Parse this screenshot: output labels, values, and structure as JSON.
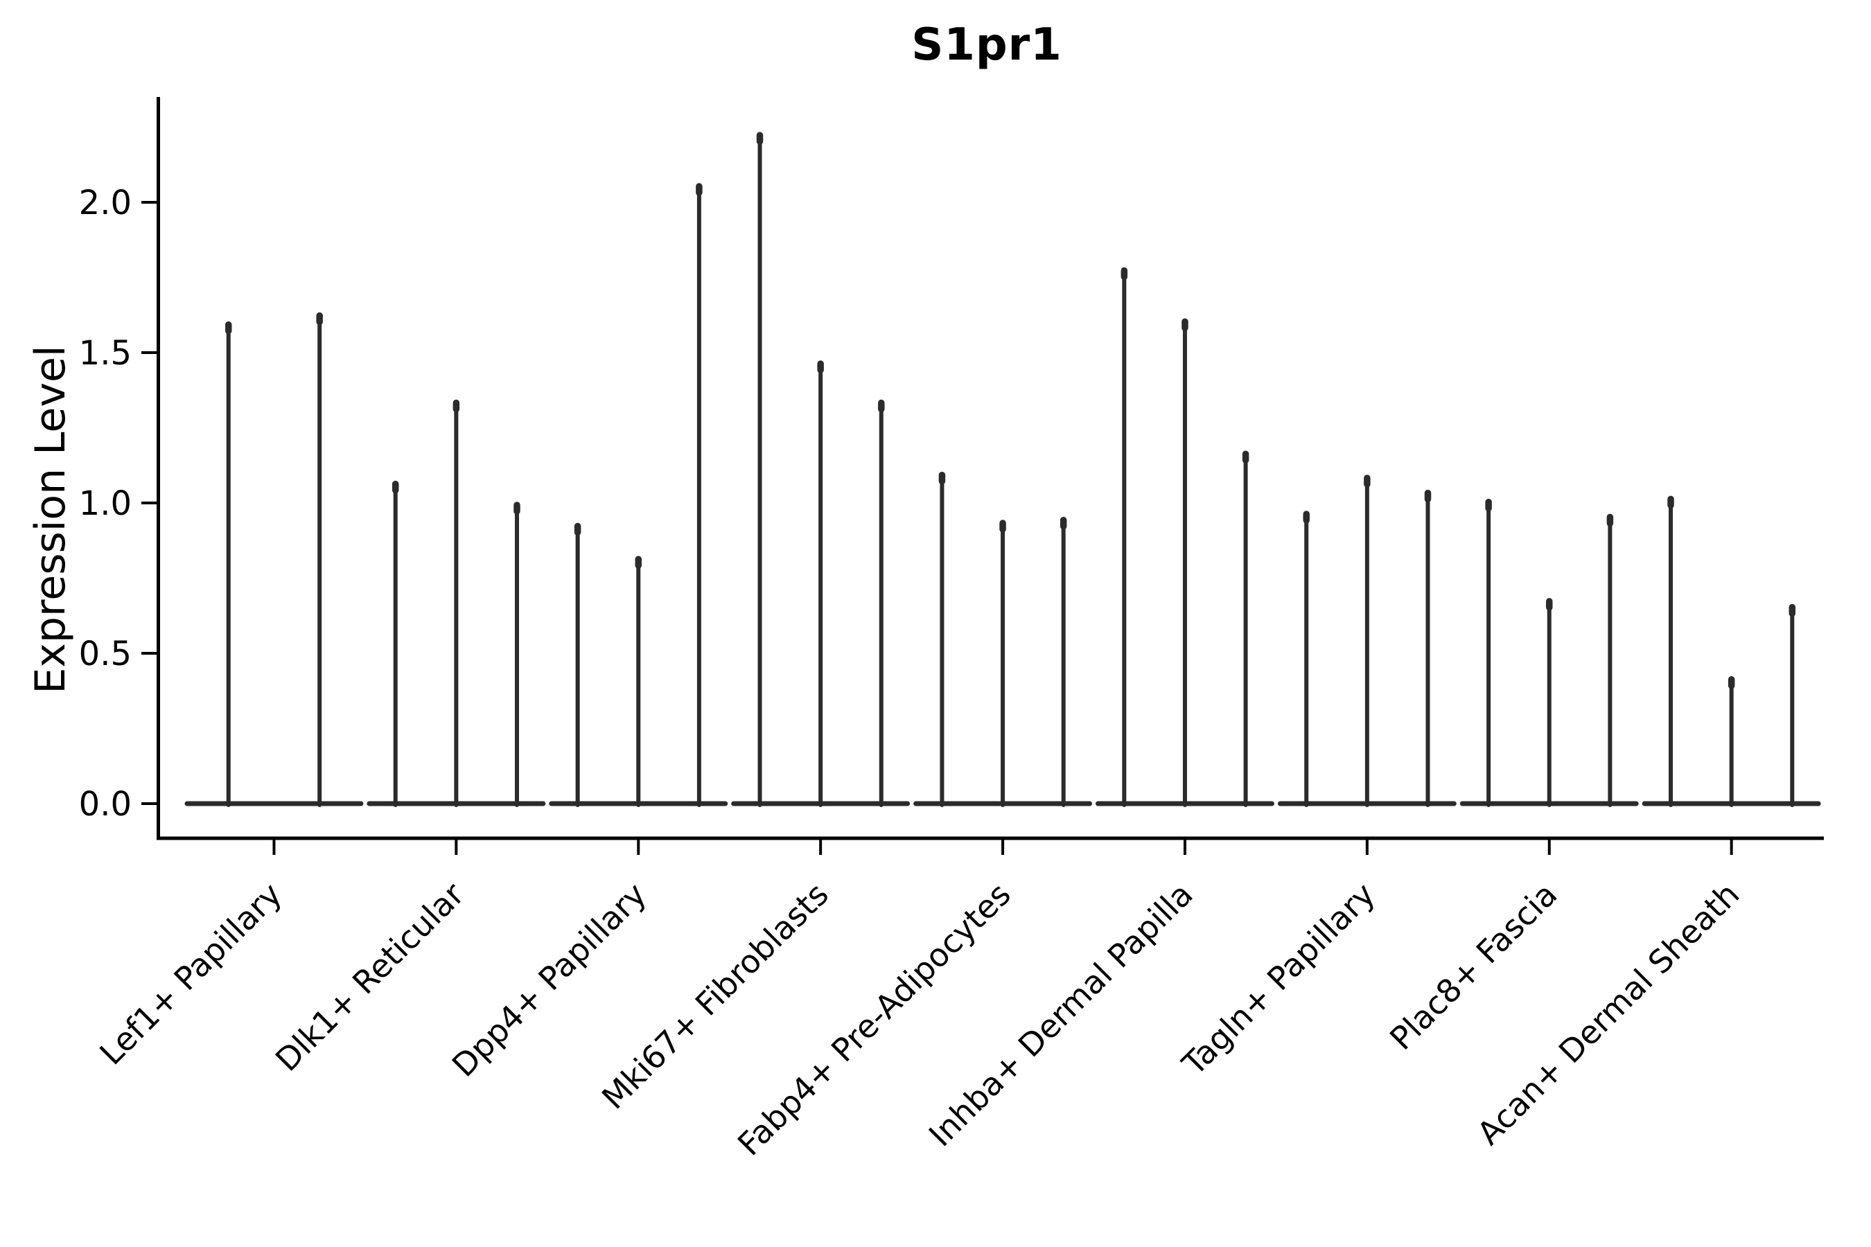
{
  "chart_data": {
    "type": "violin",
    "title": "S1pr1",
    "ylabel": "Expression Level",
    "xlabel": "",
    "ylim": [
      -0.17,
      2.35
    ],
    "yticks": [
      0.0,
      0.5,
      1.0,
      1.5,
      2.0
    ],
    "ytick_labels": [
      "0.0",
      "0.5",
      "1.0",
      "1.5",
      "2.0"
    ],
    "x_tick_rotation": 45,
    "grid": false,
    "legend_position": "none",
    "spines": [
      "left",
      "bottom"
    ],
    "categories": [
      "Lef1+ Papillary",
      "Dlk1+ Reticular",
      "Dpp4+ Papillary",
      "Mki67+ Fibroblasts",
      "Fabp4+ Pre-Adipocytes",
      "Inhba+ Dermal Papilla",
      "Tagln+ Papillary",
      "Plac8+ Fascia",
      "Acan+ Dermal Sheath"
    ],
    "groups": [
      {
        "category": "Lef1+ Papillary",
        "violin_maxima": [
          1.6,
          1.63
        ]
      },
      {
        "category": "Dlk1+ Reticular",
        "violin_maxima": [
          1.07,
          1.34,
          1.0
        ]
      },
      {
        "category": "Dpp4+ Papillary",
        "violin_maxima": [
          0.93,
          0.82,
          2.06
        ]
      },
      {
        "category": "Mki67+ Fibroblasts",
        "violin_maxima": [
          2.23,
          1.47,
          1.34
        ]
      },
      {
        "category": "Fabp4+ Pre-Adipocytes",
        "violin_maxima": [
          1.1,
          0.94,
          0.95
        ]
      },
      {
        "category": "Inhba+ Dermal Papilla",
        "violin_maxima": [
          1.78,
          1.61,
          1.17
        ]
      },
      {
        "category": "Tagln+ Papillary",
        "violin_maxima": [
          0.97,
          1.09,
          1.04
        ]
      },
      {
        "category": "Plac8+ Fascia",
        "violin_maxima": [
          1.01,
          0.68,
          0.96
        ]
      },
      {
        "category": "Acan+ Dermal Sheath",
        "violin_maxima": [
          1.02,
          0.42,
          0.66
        ]
      }
    ],
    "violin_shape_note": "each violin is a wide flat base at expression 0 with a single thin spike rising to its maximum value",
    "colors": {
      "violin": "#2b2b2b",
      "axis": "#000000",
      "text": "#000000",
      "background": "#ffffff"
    }
  }
}
